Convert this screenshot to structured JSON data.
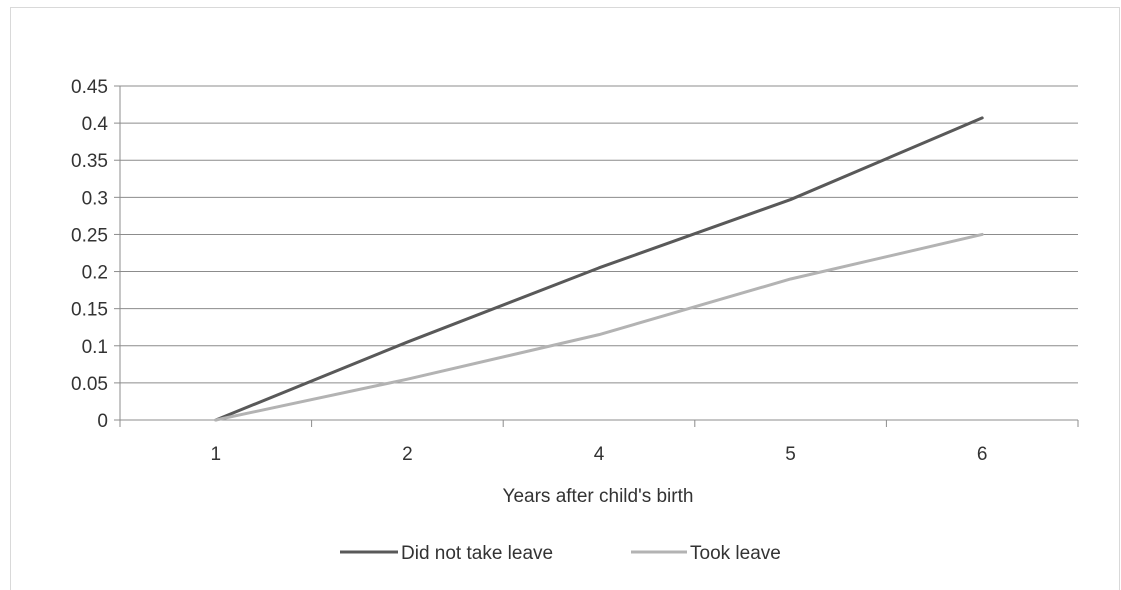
{
  "chart_data": {
    "type": "line",
    "title": "",
    "xlabel": "Years after child's birth",
    "ylabel": "",
    "categories": [
      "1",
      "2",
      "4",
      "5",
      "6"
    ],
    "ylim": [
      0,
      0.45
    ],
    "yticks": [
      "0",
      "0.05",
      "0.1",
      "0.15",
      "0.2",
      "0.25",
      "0.3",
      "0.35",
      "0.4",
      "0.45"
    ],
    "grid": true,
    "legend_position": "bottom",
    "series": [
      {
        "name": "Did not take leave",
        "color": "#595959",
        "values": [
          0,
          0.105,
          0.205,
          0.297,
          0.407
        ]
      },
      {
        "name": "Took leave",
        "color": "#b3b3b3",
        "values": [
          0,
          0.055,
          0.115,
          0.19,
          0.25
        ]
      }
    ]
  }
}
